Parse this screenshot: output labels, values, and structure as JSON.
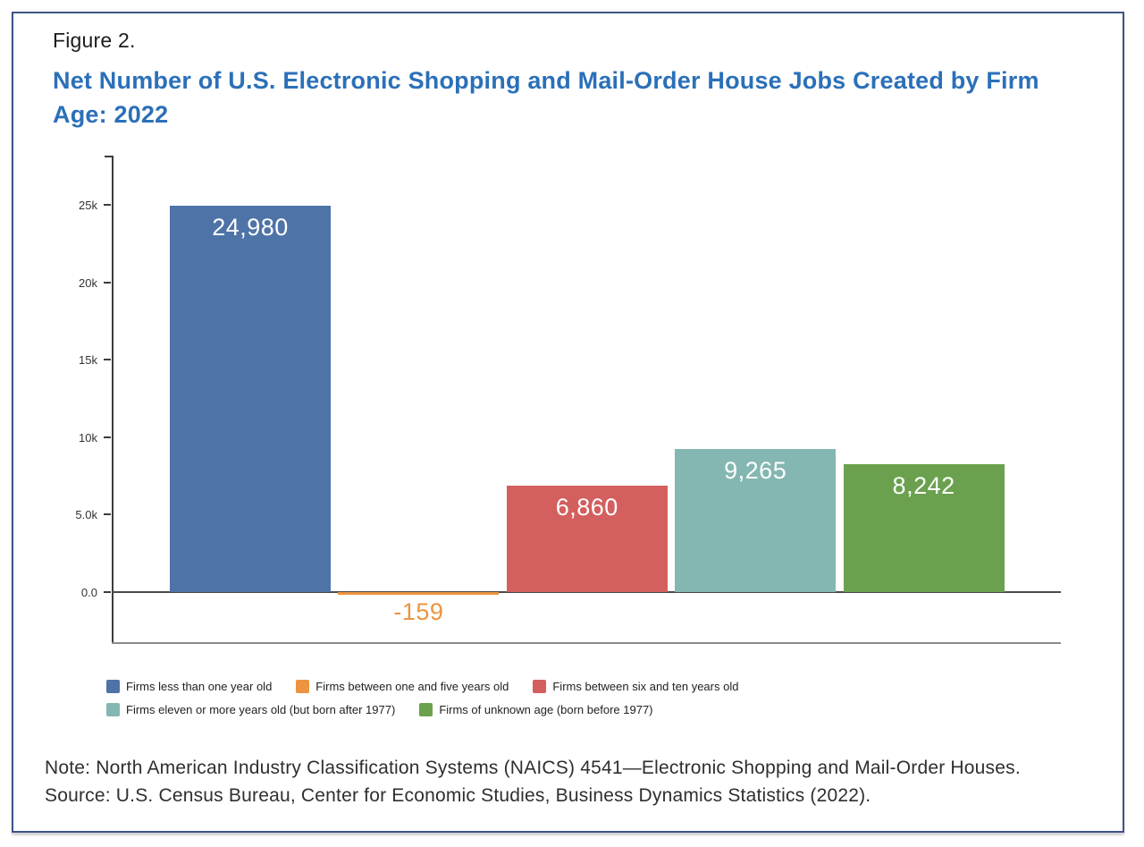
{
  "figure": {
    "label": "Figure 2.",
    "title": "Net Number of U.S. Electronic Shopping and Mail-Order House Jobs Created by Firm Age: 2022",
    "title_color": "#2b70b8",
    "border_color": "#3d5486"
  },
  "chart_data": {
    "type": "bar",
    "title": "Net Number of U.S. Electronic Shopping and Mail-Order House Jobs Created by Firm Age: 2022",
    "xlabel": "",
    "ylabel": "",
    "categories": [
      "Firms less than one year old",
      "Firms between one and five years old",
      "Firms between six and ten years old",
      "Firms eleven or more years old (but born after 1977)",
      "Firms of unknown age (born before 1977)"
    ],
    "values": [
      24980,
      -159,
      6860,
      9265,
      8242
    ],
    "value_labels": [
      "24,980",
      "-159",
      "6,860",
      "9,265",
      "8,242"
    ],
    "colors": [
      "#4e73a7",
      "#ec9440",
      "#d35f5e",
      "#84b7b1",
      "#6ba14e"
    ],
    "ylim": [
      -3350,
      28200
    ],
    "yticks": [
      {
        "value": 25000,
        "label": "25k"
      },
      {
        "value": 20000,
        "label": "20k"
      },
      {
        "value": 15000,
        "label": "15k"
      },
      {
        "value": 10000,
        "label": "10k"
      },
      {
        "value": 5000,
        "label": "5.0k"
      },
      {
        "value": 0,
        "label": "0.0"
      }
    ],
    "grid": false,
    "legend_position": "bottom",
    "legend_rows": [
      [
        0,
        1,
        2
      ],
      [
        3,
        4
      ]
    ]
  },
  "note": "Note: North American Industry Classification Systems (NAICS) 4541—Electronic Shopping and Mail-Order Houses.",
  "source": "Source: U.S. Census Bureau, Center for Economic Studies, Business Dynamics Statistics (2022)."
}
